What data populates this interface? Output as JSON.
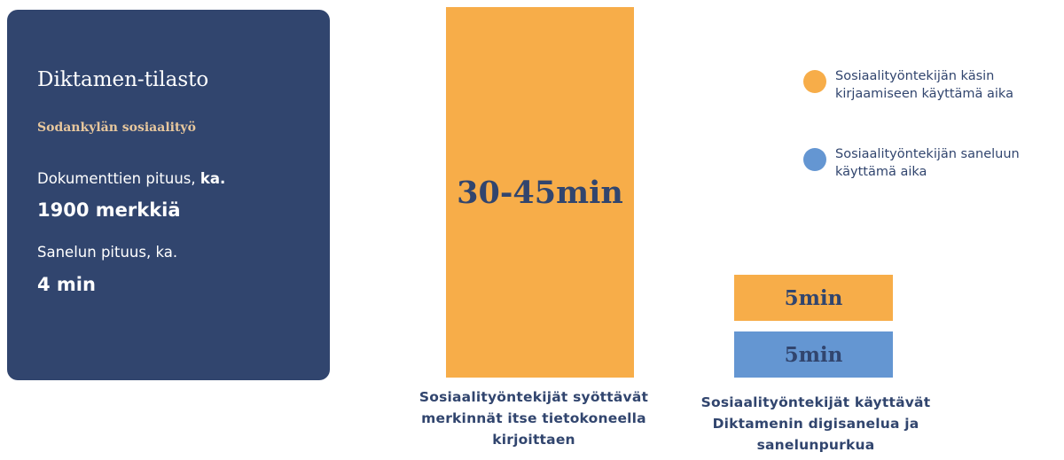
{
  "card": {
    "title": "Diktamen-tilasto",
    "subtitle": "Sodankylän sosiaalityö",
    "doc_length_label": "Dokumenttien pituus, ",
    "doc_length_label_bold": "ka.",
    "doc_length_value": "1900 merkkiä",
    "dictation_length_label": "Sanelun pituus, ka.",
    "dictation_length_value": "4 min"
  },
  "chart_data": {
    "type": "bar",
    "categories": [
      "Sosiaalityöntekijät syöttävät merkinnät itse tietokoneella kirjoittaen",
      "Sosiaalityöntekijät käyttävät Diktamenin digisanelua ja sanelunpurkua"
    ],
    "series": [
      {
        "name": "Sosiaalityöntekijän käsin kirjaamiseen käyttämä aika",
        "color": "#f7ad49",
        "value_labels": [
          "30-45min",
          "5min"
        ]
      },
      {
        "name": "Sosiaalityöntekijän saneluun käyttämä aika",
        "color": "#6496d2",
        "value_labels": [
          "",
          "5min"
        ]
      }
    ],
    "category_labels_lines": [
      [
        "Sosiaalityöntekijät syöttävät",
        "merkinnät itse tietokoneella",
        "kirjoittaen"
      ],
      [
        "Sosiaalityöntekijät käyttävät",
        "Diktamenin digisanelua ja",
        "sanelunpurkua"
      ]
    ],
    "legend_lines": [
      [
        "Sosiaalityöntekijän käsin",
        "kirjaamiseen käyttämä aika"
      ],
      [
        "Sosiaalityöntekijän saneluun",
        "käyttämä aika"
      ]
    ],
    "legend_position": "top-right"
  },
  "colors": {
    "card_bg": "#31456e",
    "accent_text": "#e7c79d",
    "orange": "#f7ad49",
    "blue": "#6496d2"
  }
}
